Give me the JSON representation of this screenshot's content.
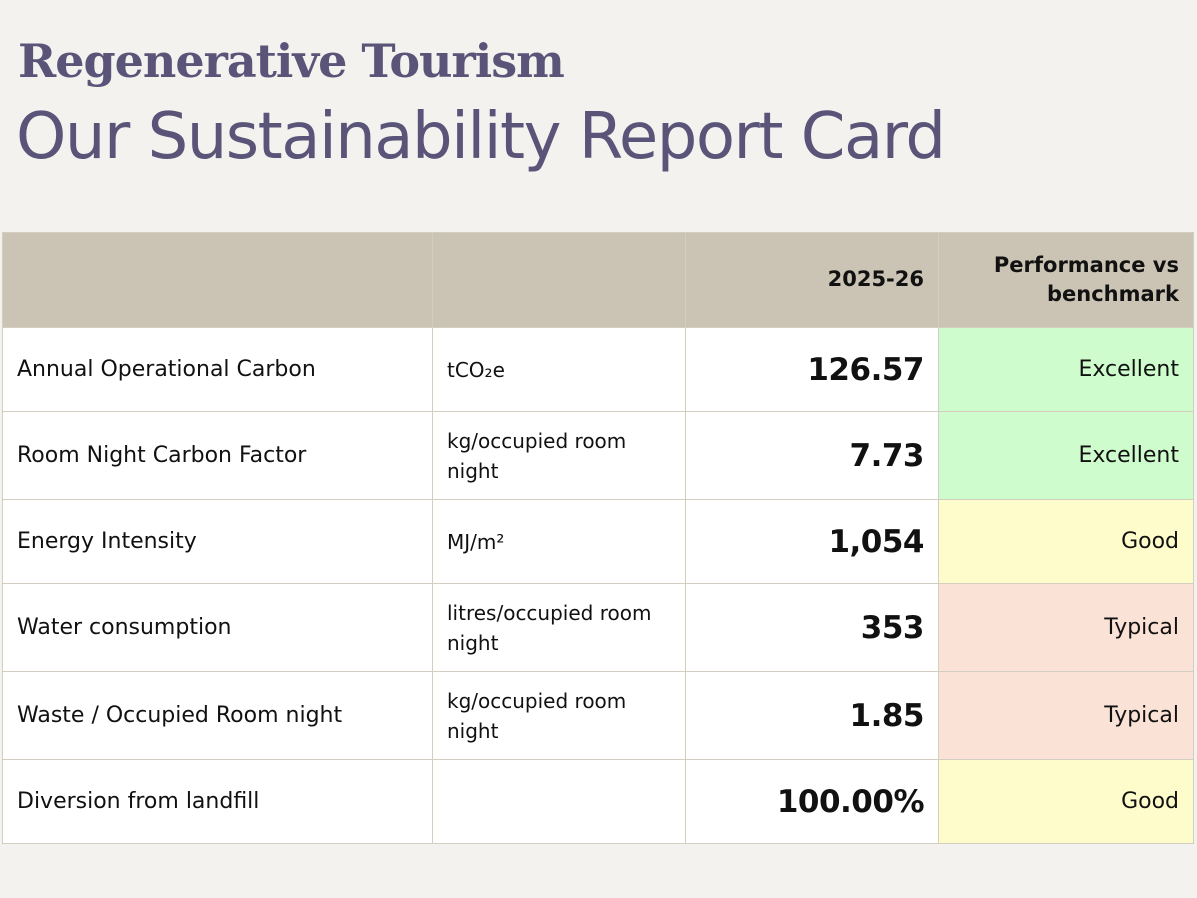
{
  "header": {
    "eyebrow": "Regenerative Tourism",
    "title": "Our Sustainability Report Card"
  },
  "table": {
    "columns": [
      "",
      "",
      "2025-26",
      "Performance vs benchmark"
    ],
    "rows": [
      {
        "metric": "Annual Operational Carbon",
        "unit": "tCO₂e",
        "value": "126.57",
        "performance": "Excellent",
        "rating_color": "#cffccc"
      },
      {
        "metric": "Room Night Carbon Factor",
        "unit": "kg/occupied room night",
        "value": "7.73",
        "performance": "Excellent",
        "rating_color": "#cffccc"
      },
      {
        "metric": "Energy Intensity",
        "unit": "MJ/m²",
        "value": "1,054",
        "performance": "Good",
        "rating_color": "#fefcca"
      },
      {
        "metric": "Water consumption",
        "unit": "litres/occupied room night",
        "value": "353",
        "performance": "Typical",
        "rating_color": "#fbe2d6"
      },
      {
        "metric": "Waste / Occupied Room night",
        "unit": "kg/occupied room night",
        "value": "1.85",
        "performance": "Typical",
        "rating_color": "#fbe2d6"
      },
      {
        "metric": "Diversion from landfill",
        "unit": "",
        "value": "100.00%",
        "performance": "Good",
        "rating_color": "#fefcca"
      }
    ]
  },
  "colors": {
    "heading": "#5a5578",
    "header_band": "#cbc4b4",
    "background": "#f3f2ef"
  }
}
